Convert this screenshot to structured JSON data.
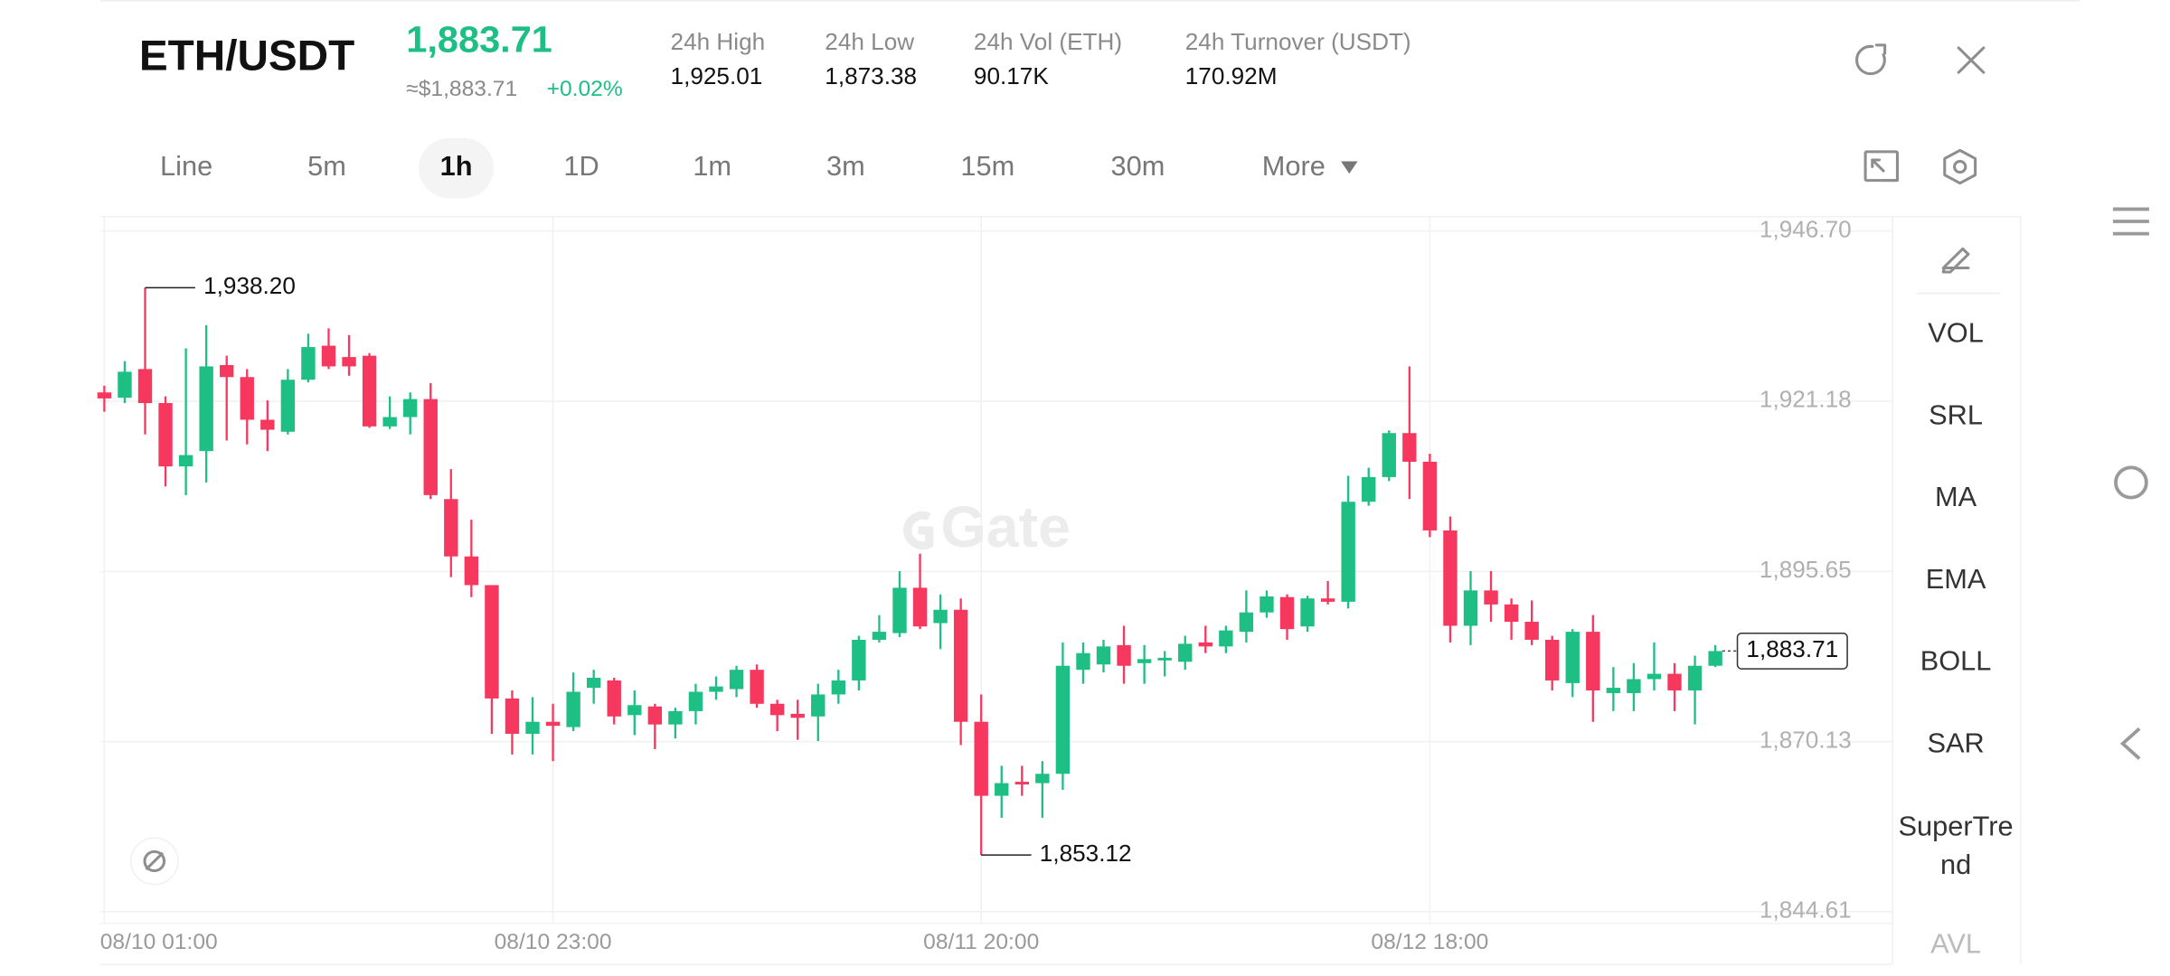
{
  "header": {
    "pair": "ETH/USDT",
    "price": "1,883.71",
    "price_usd": "≈$1,883.71",
    "change": "+0.02%",
    "stats": [
      {
        "label": "24h High",
        "value": "1,925.01"
      },
      {
        "label": "24h Low",
        "value": "1,873.38"
      },
      {
        "label": "24h Vol (ETH)",
        "value": "90.17K"
      },
      {
        "label": "24h Turnover (USDT)",
        "value": "170.92M"
      }
    ]
  },
  "tabs": [
    "Line",
    "5m",
    "1h",
    "1D",
    "1m",
    "3m",
    "15m",
    "30m",
    "More"
  ],
  "active_tab": "1h",
  "indicators": [
    "VOL",
    "SRL",
    "MA",
    "EMA",
    "BOLL",
    "SAR",
    "SuperTrend",
    "AVL"
  ],
  "watermark": "Gate",
  "chart_data": {
    "type": "candlestick",
    "categories": [
      "08/10 01:00",
      null,
      null,
      null,
      null,
      null,
      null,
      null,
      null,
      null,
      null,
      null,
      null,
      null,
      null,
      null,
      null,
      null,
      null,
      null,
      null,
      null,
      "08/10 23:00",
      null,
      null,
      null,
      null,
      null,
      null,
      null,
      null,
      null,
      null,
      null,
      null,
      null,
      null,
      null,
      null,
      null,
      null,
      null,
      null,
      "08/11 20:00",
      null,
      null,
      null,
      null,
      null,
      null,
      null,
      null,
      null,
      null,
      null,
      null,
      null,
      null,
      null,
      null,
      null,
      null,
      null,
      null,
      null,
      "08/12 18:00",
      null,
      null,
      null,
      null,
      null,
      null,
      null,
      null,
      null,
      null,
      null,
      null,
      null,
      null
    ],
    "open": [
      1922.5,
      1921.7,
      1926.0,
      1920.9,
      1911.4,
      1913.7,
      1926.6,
      1924.8,
      1918.4,
      1916.6,
      1924.4,
      1929.5,
      1927.8,
      1928.0,
      1917.4,
      1918.8,
      1921.5,
      1906.5,
      1897.9,
      1893.6,
      1876.6,
      1871.3,
      1873.1,
      1872.3,
      1878.2,
      1879.3,
      1874.1,
      1875.4,
      1872.7,
      1874.7,
      1877.6,
      1878.0,
      1880.9,
      1875.8,
      1874.3,
      1873.9,
      1877.2,
      1879.3,
      1885.4,
      1886.4,
      1893.2,
      1887.9,
      1889.9,
      1873.1,
      1862.0,
      1864.1,
      1863.9,
      1865.3,
      1880.9,
      1881.7,
      1884.6,
      1881.9,
      1882.3,
      1882.1,
      1885.0,
      1884.4,
      1886.6,
      1889.5,
      1891.8,
      1887.4,
      1891.6,
      1891.1,
      1906.1,
      1909.8,
      1916.4,
      1912.1,
      1901.8,
      1887.5,
      1892.8,
      1890.7,
      1888.1,
      1885.4,
      1878.9,
      1886.6,
      1877.4,
      1877.4,
      1879.5,
      1880.3,
      1877.8,
      1881.5
    ],
    "high": [
      1923.5,
      1927.2,
      1938.2,
      1921.9,
      1929.1,
      1932.6,
      1928.0,
      1926.0,
      1921.3,
      1926.0,
      1931.3,
      1932.1,
      1931.1,
      1928.4,
      1921.9,
      1922.5,
      1923.9,
      1911.0,
      1903.4,
      1893.6,
      1877.8,
      1876.8,
      1875.8,
      1880.5,
      1880.9,
      1879.7,
      1877.8,
      1875.8,
      1875.2,
      1878.8,
      1879.9,
      1881.5,
      1881.7,
      1876.4,
      1876.4,
      1878.8,
      1880.9,
      1886.0,
      1889.1,
      1895.7,
      1898.3,
      1892.2,
      1891.6,
      1877.2,
      1866.5,
      1866.5,
      1867.2,
      1885.0,
      1885.0,
      1885.4,
      1887.5,
      1884.6,
      1883.7,
      1886.0,
      1887.5,
      1887.5,
      1892.8,
      1892.8,
      1892.2,
      1892.0,
      1894.2,
      1910.0,
      1911.2,
      1916.8,
      1926.4,
      1913.3,
      1903.9,
      1895.7,
      1895.7,
      1891.6,
      1891.3,
      1886.0,
      1887.0,
      1889.1,
      1881.3,
      1881.9,
      1885.0,
      1881.9,
      1883.0,
      1884.6
    ],
    "low": [
      1919.6,
      1920.9,
      1916.2,
      1908.4,
      1907.1,
      1909.0,
      1915.3,
      1914.7,
      1913.7,
      1916.2,
      1924.0,
      1926.0,
      1925.0,
      1917.2,
      1917.0,
      1916.2,
      1906.5,
      1894.8,
      1891.8,
      1871.3,
      1868.2,
      1868.2,
      1867.2,
      1871.7,
      1875.8,
      1872.7,
      1871.1,
      1869.0,
      1870.6,
      1872.7,
      1876.4,
      1876.8,
      1875.2,
      1871.7,
      1870.4,
      1870.2,
      1875.8,
      1877.8,
      1885.0,
      1885.8,
      1887.0,
      1884.0,
      1869.6,
      1853.12,
      1858.7,
      1862.0,
      1858.7,
      1862.9,
      1878.8,
      1880.5,
      1878.8,
      1878.8,
      1879.9,
      1880.9,
      1883.4,
      1883.4,
      1885.0,
      1888.7,
      1885.4,
      1886.6,
      1890.7,
      1890.1,
      1905.5,
      1909.2,
      1906.5,
      1900.8,
      1885.0,
      1884.6,
      1888.1,
      1885.4,
      1884.6,
      1877.8,
      1876.8,
      1873.1,
      1874.7,
      1874.7,
      1877.8,
      1874.7,
      1872.7,
      1881.3
    ],
    "close": [
      1921.6,
      1925.6,
      1920.9,
      1911.4,
      1913.1,
      1926.4,
      1924.8,
      1918.4,
      1916.9,
      1924.4,
      1929.3,
      1926.4,
      1926.4,
      1917.4,
      1918.8,
      1921.5,
      1907.1,
      1897.9,
      1893.6,
      1876.6,
      1871.3,
      1873.1,
      1872.5,
      1877.6,
      1879.7,
      1873.9,
      1875.6,
      1872.7,
      1874.7,
      1877.6,
      1878.4,
      1880.9,
      1875.8,
      1874.1,
      1873.7,
      1877.2,
      1879.3,
      1885.4,
      1886.6,
      1893.2,
      1887.4,
      1889.9,
      1873.1,
      1862.0,
      1863.9,
      1863.7,
      1865.3,
      1881.5,
      1883.4,
      1884.4,
      1881.5,
      1882.5,
      1882.7,
      1884.8,
      1884.4,
      1886.8,
      1889.5,
      1891.9,
      1887.0,
      1891.6,
      1891.1,
      1906.1,
      1909.8,
      1916.4,
      1912.1,
      1901.8,
      1887.5,
      1892.8,
      1890.7,
      1888.1,
      1885.4,
      1879.3,
      1886.6,
      1877.8,
      1878.2,
      1879.5,
      1880.3,
      1877.8,
      1881.5,
      1883.71
    ],
    "up_color": "#1dbf84",
    "down_color": "#f6375e",
    "ylim": [
      1836.82,
      1948.96
    ],
    "yticks": [
      {
        "value": 1946.7,
        "label": "1,946.70"
      },
      {
        "value": 1921.18,
        "label": "1,921.18"
      },
      {
        "value": 1895.65,
        "label": "1,895.65"
      },
      {
        "value": 1870.13,
        "label": "1,870.13"
      },
      {
        "value": 1844.61,
        "label": "1,844.61"
      }
    ],
    "grid": true,
    "annotations": [
      {
        "value": 1938.2,
        "label": "1,938.20"
      },
      {
        "value": 1853.12,
        "label": "1,853.12"
      }
    ],
    "last_price": {
      "value": 1883.71,
      "label": "1,883.71"
    }
  }
}
